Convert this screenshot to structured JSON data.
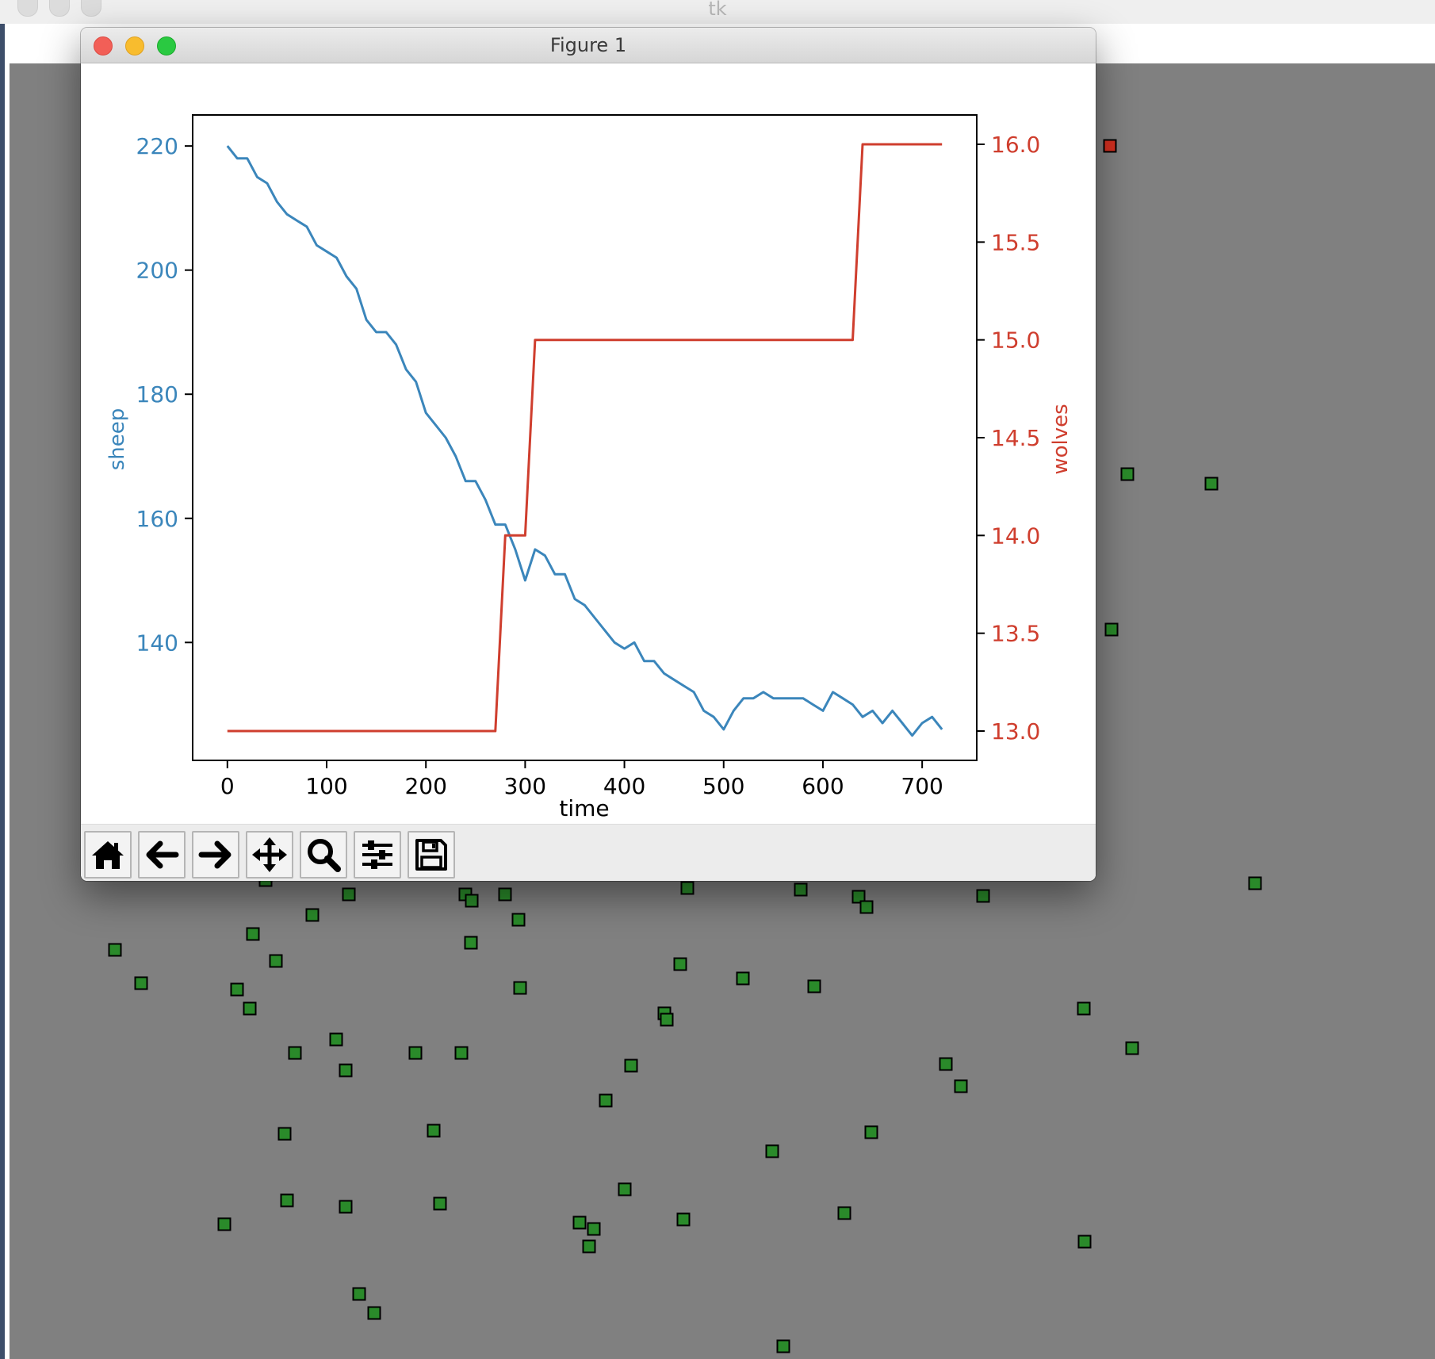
{
  "background_window": {
    "title": "tk"
  },
  "figure_window": {
    "title": "Figure 1"
  },
  "toolbar": {
    "buttons": [
      {
        "name": "home",
        "icon": "home-icon"
      },
      {
        "name": "back",
        "icon": "arrow-left-icon"
      },
      {
        "name": "forward",
        "icon": "arrow-right-icon"
      },
      {
        "name": "pan",
        "icon": "move-icon"
      },
      {
        "name": "zoom",
        "icon": "magnifier-icon"
      },
      {
        "name": "configure-subplots",
        "icon": "sliders-icon"
      },
      {
        "name": "save",
        "icon": "floppy-disk-icon"
      }
    ]
  },
  "colors": {
    "sheep": "#3b86bb",
    "wolves": "#cf3e2e",
    "canvas": "#808080",
    "agent_sheep": "#2a8a2a",
    "agent_wolf": "#d63020"
  },
  "chart_data": {
    "type": "line",
    "title": "",
    "xlabel": "time",
    "ylabel_left": "sheep",
    "ylabel_right": "wolves",
    "xlim": [
      -35,
      755
    ],
    "ylim_left": [
      121,
      225
    ],
    "ylim_right": [
      12.85,
      16.15
    ],
    "xticks": [
      0,
      100,
      200,
      300,
      400,
      500,
      600,
      700
    ],
    "yticks_left": [
      140,
      160,
      180,
      200,
      220
    ],
    "yticks_right": [
      13.0,
      13.5,
      14.0,
      14.5,
      15.0,
      15.5,
      16.0
    ],
    "ytick_labels_right": [
      "13.0",
      "13.5",
      "14.0",
      "14.5",
      "15.0",
      "15.5",
      "16.0"
    ],
    "grid": false,
    "series": [
      {
        "name": "sheep",
        "axis": "left",
        "x": [
          0,
          10,
          20,
          30,
          40,
          50,
          60,
          70,
          80,
          90,
          100,
          110,
          120,
          130,
          140,
          150,
          160,
          170,
          180,
          190,
          200,
          210,
          220,
          230,
          240,
          250,
          260,
          270,
          280,
          290,
          300,
          310,
          320,
          330,
          340,
          350,
          360,
          370,
          380,
          390,
          400,
          410,
          420,
          430,
          440,
          450,
          460,
          470,
          480,
          490,
          500,
          510,
          520,
          530,
          540,
          550,
          560,
          570,
          580,
          590,
          600,
          610,
          620,
          630,
          640,
          650,
          660,
          670,
          680,
          690,
          700,
          710,
          720
        ],
        "y": [
          220,
          218,
          218,
          215,
          214,
          211,
          209,
          208,
          207,
          204,
          203,
          202,
          199,
          197,
          192,
          190,
          190,
          188,
          184,
          182,
          177,
          175,
          173,
          170,
          166,
          166,
          163,
          159,
          159,
          155,
          150,
          155,
          154,
          151,
          151,
          147,
          146,
          144,
          142,
          140,
          139,
          140,
          137,
          137,
          135,
          134,
          133,
          132,
          129,
          128,
          126,
          129,
          131,
          131,
          132,
          131,
          131,
          131,
          131,
          130,
          129,
          132,
          131,
          130,
          128,
          129,
          127,
          129,
          127,
          125,
          127,
          128,
          126
        ]
      },
      {
        "name": "wolves",
        "axis": "right",
        "x": [
          0,
          270,
          280,
          300,
          310,
          630,
          640,
          720
        ],
        "y": [
          13,
          13,
          14,
          14,
          15,
          15,
          16,
          16
        ]
      }
    ]
  },
  "agents": {
    "sheep_positions": [
      [
        1422,
        598
      ],
      [
        1528,
        610
      ],
      [
        1402,
        794
      ],
      [
        1583,
        1114
      ],
      [
        335,
        1110
      ],
      [
        440,
        1128
      ],
      [
        587,
        1128
      ],
      [
        637,
        1128
      ],
      [
        867,
        1120
      ],
      [
        1010,
        1122
      ],
      [
        1083,
        1131
      ],
      [
        1240,
        1130
      ],
      [
        394,
        1154
      ],
      [
        595,
        1136
      ],
      [
        654,
        1160
      ],
      [
        1093,
        1144
      ],
      [
        319,
        1178
      ],
      [
        594,
        1189
      ],
      [
        858,
        1216
      ],
      [
        145,
        1198
      ],
      [
        348,
        1212
      ],
      [
        937,
        1234
      ],
      [
        1027,
        1244
      ],
      [
        178,
        1240
      ],
      [
        299,
        1248
      ],
      [
        656,
        1246
      ],
      [
        315,
        1272
      ],
      [
        838,
        1278
      ],
      [
        841,
        1286
      ],
      [
        1367,
        1272
      ],
      [
        424,
        1311
      ],
      [
        1428,
        1322
      ],
      [
        372,
        1328
      ],
      [
        436,
        1350
      ],
      [
        524,
        1328
      ],
      [
        582,
        1328
      ],
      [
        796,
        1344
      ],
      [
        1193,
        1342
      ],
      [
        1212,
        1370
      ],
      [
        764,
        1388
      ],
      [
        359,
        1430
      ],
      [
        547,
        1426
      ],
      [
        1099,
        1428
      ],
      [
        974,
        1452
      ],
      [
        788,
        1500
      ],
      [
        362,
        1514
      ],
      [
        555,
        1518
      ],
      [
        283,
        1544
      ],
      [
        436,
        1522
      ],
      [
        731,
        1542
      ],
      [
        749,
        1550
      ],
      [
        862,
        1538
      ],
      [
        1065,
        1530
      ],
      [
        1368,
        1566
      ],
      [
        743,
        1572
      ],
      [
        453,
        1632
      ],
      [
        472,
        1656
      ],
      [
        988,
        1698
      ]
    ],
    "wolf_positions": [
      [
        1400,
        184
      ]
    ]
  }
}
